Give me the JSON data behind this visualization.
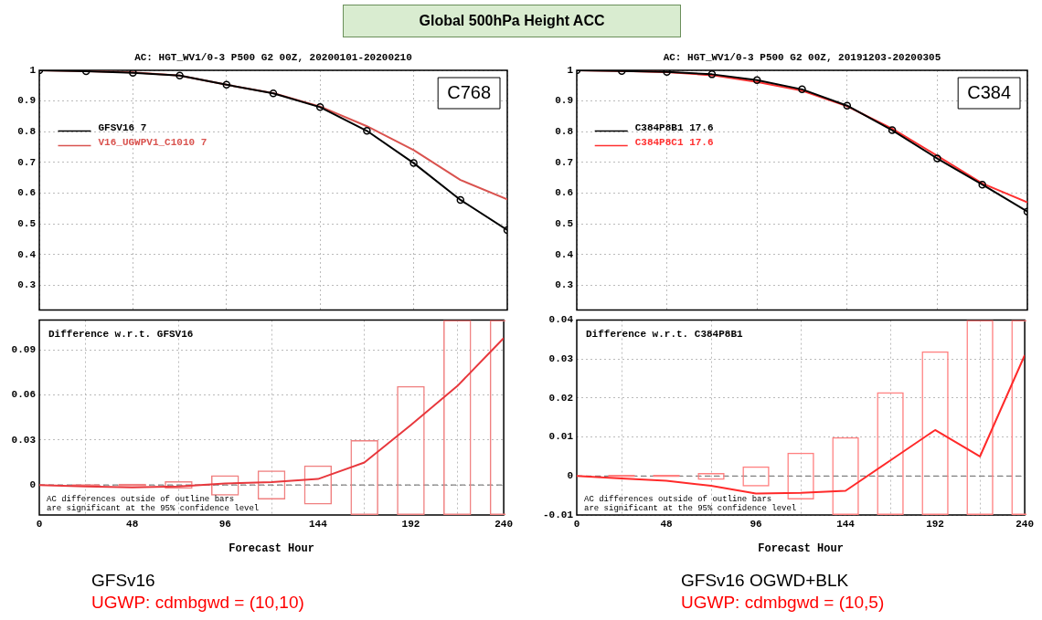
{
  "chart_data": [
    {
      "type": "other",
      "title": "Global 500hPa Height ACC"
    },
    {
      "type": "line",
      "title": "AC: HGT_WV1/0-3 P500 G2 00Z, 20200101-20200210",
      "x": [
        0,
        24,
        48,
        72,
        96,
        120,
        144,
        168,
        192,
        216,
        240
      ],
      "series": [
        {
          "name": "GFSV16 7",
          "color": "#000000",
          "marker": "circle",
          "values": [
            1,
            0.997,
            0.992,
            0.983,
            0.953,
            0.925,
            0.88,
            0.803,
            0.698,
            0.578,
            0.48
          ]
        },
        {
          "name": "V16_UGWPV1_C1010 7",
          "color": "#d9534f",
          "values": [
            1,
            0.997,
            0.993,
            0.983,
            0.953,
            0.926,
            0.882,
            0.818,
            0.74,
            0.643,
            0.58
          ]
        }
      ],
      "xlim": [
        0,
        240
      ],
      "xticks": [
        0,
        48,
        96,
        144,
        192,
        240
      ],
      "ylim": [
        0.22,
        1
      ],
      "yticks": [
        0.3,
        0.4,
        0.5,
        0.6,
        0.7,
        0.8,
        0.9,
        1
      ],
      "grid": true,
      "legend": "top left",
      "tick_labels": "y",
      "annotations": [
        "C768"
      ]
    },
    {
      "type": "line",
      "x": [
        0,
        24,
        48,
        72,
        96,
        120,
        144,
        168,
        192,
        216,
        240
      ],
      "series": [
        {
          "type": "bar",
          "color": "#f08080",
          "x": [
            24,
            48,
            72,
            96,
            120,
            144,
            168,
            192,
            216,
            240
          ],
          "base": [
            -0.0005,
            -0.0008,
            -0.0025,
            -0.007,
            -0.0097,
            -0.013,
            -0.02,
            -0.02,
            -0.02,
            -0.02
          ],
          "values": [
            0.001,
            0.0016,
            0.005,
            0.0135,
            0.0194,
            0.026,
            0.05,
            0.086,
            0.13,
            0.13
          ]
        },
        {
          "color": "#e8383d",
          "values": [
            0,
            -0.001,
            -0.0015,
            -0.001,
            0.001,
            0.002,
            0.004,
            0.015,
            0.04,
            0.066,
            0.098
          ]
        }
      ],
      "xlim": [
        0,
        240
      ],
      "xticks": [
        0,
        48,
        96,
        144,
        192,
        240
      ],
      "xlabel": "Forecast Hour",
      "ylim": [
        -0.02,
        0.11
      ],
      "yticks": [
        0,
        0.03,
        0.06,
        0.09
      ],
      "grid": true,
      "ref_lines": [
        {
          "axis": "y",
          "value": 0,
          "color": "#808080",
          "line_style": "dashed"
        }
      ],
      "annotations": [
        "Difference w.r.t. GFSV16",
        "AC differences outside of outline bars\nare significant at the 95% confidence level",
        "GFSv16",
        "UGWP: cdmbgwd = (10,10)"
      ]
    },
    {
      "type": "line",
      "title": "AC: HGT_WV1/0-3 P500 G2 00Z, 20191203-20200305",
      "x": [
        0,
        24,
        48,
        72,
        96,
        120,
        144,
        168,
        192,
        216,
        240
      ],
      "series": [
        {
          "name": "C384P8B1 17.6",
          "color": "#000000",
          "marker": "circle",
          "values": [
            1,
            0.998,
            0.995,
            0.987,
            0.968,
            0.938,
            0.885,
            0.805,
            0.713,
            0.628,
            0.54
          ]
        },
        {
          "name": "C384P8C1 17.6",
          "color": "#ff3030",
          "values": [
            1,
            0.998,
            0.994,
            0.984,
            0.962,
            0.934,
            0.883,
            0.81,
            0.722,
            0.632,
            0.57
          ]
        }
      ],
      "xlim": [
        0,
        240
      ],
      "xticks": [
        0,
        48,
        96,
        144,
        192,
        240
      ],
      "ylim": [
        0.22,
        1
      ],
      "yticks": [
        0.3,
        0.4,
        0.5,
        0.6,
        0.7,
        0.8,
        0.9,
        1
      ],
      "grid": true,
      "legend": "top left",
      "tick_labels": "y",
      "annotations": [
        "C384"
      ]
    },
    {
      "type": "line",
      "x": [
        0,
        24,
        48,
        72,
        96,
        120,
        144,
        168,
        192,
        216,
        240
      ],
      "series": [
        {
          "type": "bar",
          "color": "#ff8080",
          "x": [
            24,
            48,
            72,
            96,
            120,
            144,
            168,
            192,
            216,
            240
          ],
          "base": [
            -0.0003,
            -0.0003,
            -0.001,
            -0.0027,
            -0.006,
            -0.01,
            -0.01,
            -0.01,
            -0.01,
            -0.01
          ],
          "values": [
            0.0006,
            0.0006,
            0.0018,
            0.0052,
            0.012,
            0.02,
            0.0315,
            0.042,
            0.05,
            0.05
          ]
        },
        {
          "color": "#ff2a2a",
          "values": [
            0,
            -0.0006,
            -0.0012,
            -0.0025,
            -0.0045,
            -0.0043,
            -0.0038,
            0.004,
            0.0118,
            0.005,
            0.031
          ]
        }
      ],
      "xlim": [
        0,
        240
      ],
      "xticks": [
        0,
        48,
        96,
        144,
        192,
        240
      ],
      "xlabel": "Forecast Hour",
      "ylim": [
        -0.01,
        0.04
      ],
      "yticks": [
        -0.01,
        0,
        0.01,
        0.02,
        0.03,
        0.04
      ],
      "grid": true,
      "ref_lines": [
        {
          "axis": "y",
          "value": 0,
          "color": "#808080",
          "line_style": "dashed"
        }
      ],
      "annotations": [
        "Difference w.r.t. C384P8B1",
        "AC differences outside of outline bars\nare significant at the 95% confidence level",
        "GFSv16 OGWD+BLK",
        "UGWP: cdmbgwd = (10,5)"
      ]
    }
  ]
}
